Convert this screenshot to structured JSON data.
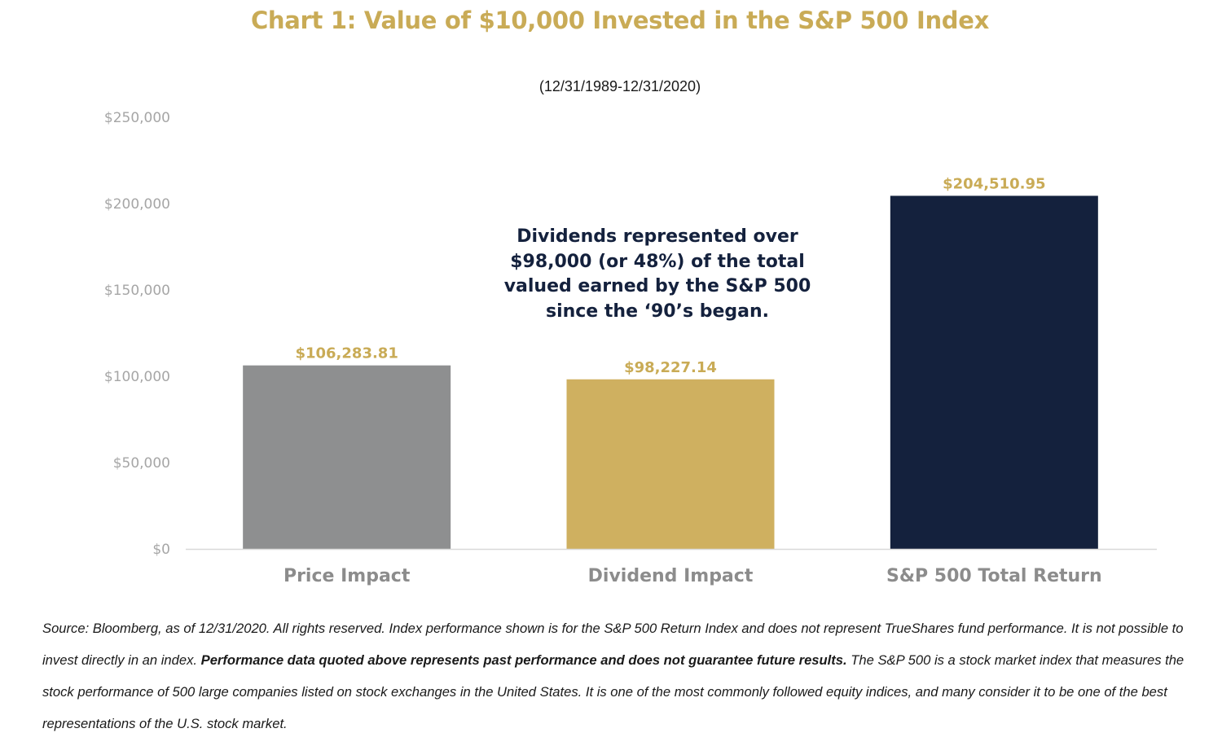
{
  "chart_data": {
    "type": "bar",
    "title": "Chart 1: Value of $10,000 Invested in the S&P 500 Index",
    "subtitle": "(12/31/1989-12/31/2020)",
    "categories": [
      "Price Impact",
      "Dividend Impact",
      "S&P 500 Total Return"
    ],
    "values": [
      106283.81,
      98227.14,
      204510.95
    ],
    "data_labels": [
      "$106,283.81",
      "$98,227.14",
      "$204,510.95"
    ],
    "bar_colors": [
      "#8e8f90",
      "#cfb060",
      "#14213d"
    ],
    "ylim": [
      0,
      250000
    ],
    "yticks": [
      0,
      50000,
      100000,
      150000,
      200000,
      250000
    ],
    "ytick_labels": [
      "$0",
      "$50,000",
      "$100,000",
      "$150,000",
      "$200,000",
      "$250,000"
    ],
    "grid": false,
    "annotation": "Dividends represented over\n$98,000 (or 48%) of the total\nvalued earned by the S&P 500\nsince the ‘90’s began."
  },
  "colors": {
    "title": "#c9ab56",
    "data_label": "#c9ab56",
    "axis_text": "#a6a6a6",
    "category_text": "#8c8c8c",
    "annotation_text": "#14213d"
  },
  "footnote": {
    "part1": "Source: Bloomberg, as of 12/31/2020. All rights reserved. Index performance shown is for the S&P 500 Return Index and does not represent TrueShares fund performance. It is not possible to invest directly in an index. ",
    "bold": "Performance data quoted above represents past performance and does not guarantee future results.",
    "part2": " The S&P 500 is a stock market index that measures the stock performance of 500 large companies listed on stock exchanges in the United States. It is one of the most commonly followed equity indices, and many consider it to be one of the best representations of the U.S. stock market."
  }
}
